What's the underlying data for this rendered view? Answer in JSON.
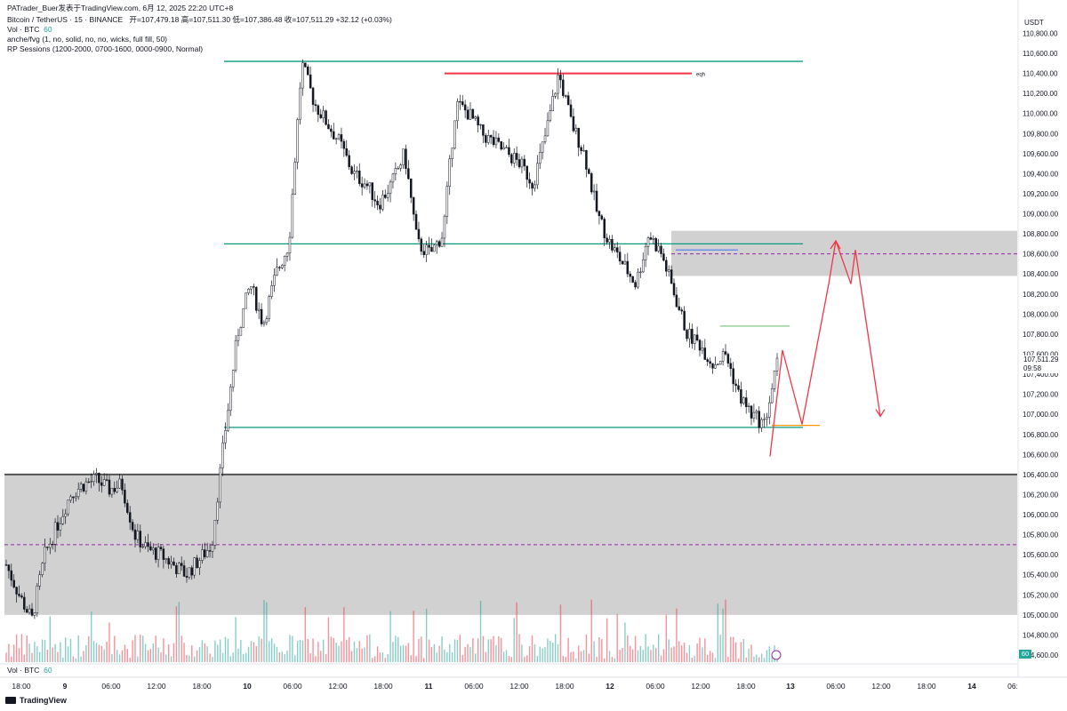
{
  "header": {
    "line1": "PATrader_Buer发表于TradingView.com,  6月 12, 2025 22:20 UTC+8",
    "line2_symbol": "Bitcoin / TetherUS · 15 · BINANCE",
    "line2_ohlc": "开=107,479.18  高=107,511.30  低=107,386.48  收=107,511.29  +32.12 (+0.03%)",
    "line3_label": "Vol · BTC",
    "line3_value": "60",
    "line4": "anche/fvg (1, no, solid, no, no, wicks, full fill, 50)",
    "line5": "RP Sessions (1200-2000, 0700-1600, 0000-0900, Normal)"
  },
  "currency": "USDT",
  "last_price": "107,511.29",
  "countdown": "09:58",
  "vol_value": "60",
  "vol_bottom_label": "Vol · BTC",
  "vol_bottom_value": "60",
  "footer_brand": "TradingView",
  "annotation_eqh": "eqh",
  "colors": {
    "up": "#26a69a",
    "down": "#131722",
    "teal_line": "#089981",
    "red_line": "#f23645",
    "zone": "#d1d1d1",
    "mid_dash": "#9c27b0",
    "arrow": "#f23645",
    "orange": "#ff9800",
    "green_thin": "#4caf50"
  },
  "x_labels": [
    "18:00",
    "9",
    "06:00",
    "12:00",
    "18:00",
    "10",
    "06:00",
    "12:00",
    "18:00",
    "11",
    "06:00",
    "12:00",
    "18:00",
    "12",
    "06:00",
    "12:00",
    "18:00",
    "13",
    "06:00",
    "12:00",
    "18:00",
    "14",
    "06:"
  ],
  "chart_data": {
    "type": "candlestick",
    "y_axis_ticks": [
      104600,
      104800,
      105000,
      105200,
      105400,
      105600,
      105800,
      106000,
      106200,
      106400,
      106600,
      106800,
      107000,
      107200,
      107400,
      107600,
      107800,
      108000,
      108200,
      108400,
      108600,
      108800,
      109000,
      109200,
      109400,
      109600,
      109800,
      110000,
      110200,
      110400,
      110600,
      110800
    ],
    "ylim": [
      104500,
      110900
    ],
    "horizontal_lines": [
      {
        "price": 110520,
        "color": "teal"
      },
      {
        "price": 110400,
        "color": "red",
        "label": "eqh"
      },
      {
        "price": 108700,
        "color": "teal"
      },
      {
        "price": 106870,
        "color": "teal"
      }
    ],
    "zones": [
      {
        "top": 108830,
        "bottom": 108380,
        "mid": 108600
      },
      {
        "top": 106400,
        "bottom": 105000,
        "mid": 105700
      }
    ],
    "projected_path": [
      106580,
      107640,
      106900,
      108300,
      108730,
      108300,
      108640,
      106980
    ],
    "close_path": [
      105500,
      105200,
      104950,
      105600,
      105900,
      106200,
      106300,
      106350,
      106250,
      106300,
      105800,
      105650,
      105600,
      105500,
      105400,
      105550,
      105700,
      106800,
      107800,
      108300,
      107900,
      108400,
      108700,
      110500,
      110100,
      109900,
      109700,
      109400,
      109300,
      109100,
      109300,
      109600,
      108700,
      108600,
      108800,
      110100,
      110000,
      109800,
      109700,
      109600,
      109500,
      109300,
      109800,
      110400,
      109900,
      109600,
      109000,
      108700,
      108500,
      108300,
      108800,
      108600,
      108200,
      107800,
      107700,
      107500,
      107600,
      107200,
      107000,
      106900,
      107500
    ],
    "volume_note": "volume histogram bars"
  }
}
